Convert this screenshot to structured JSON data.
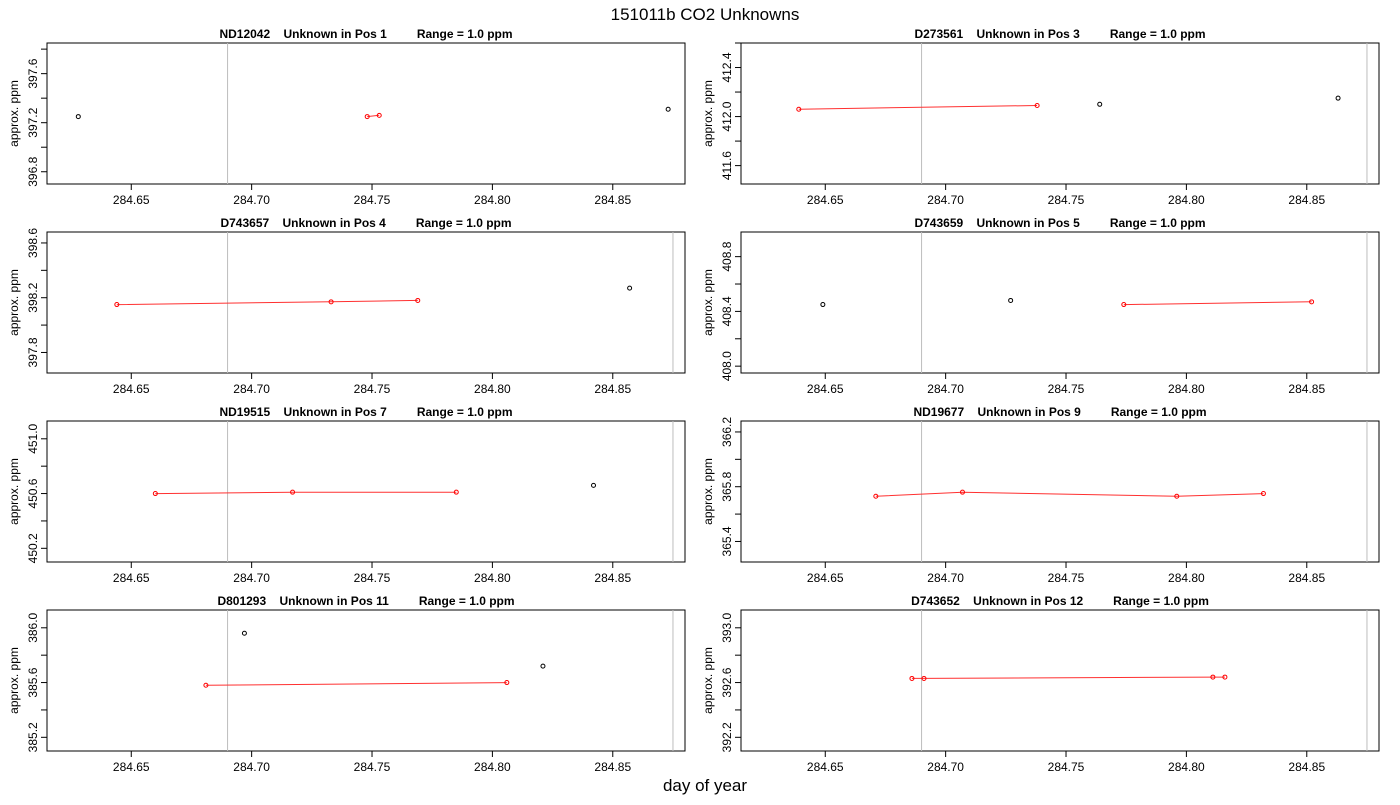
{
  "figure": {
    "title": "151011b  CO2 Unknowns",
    "xlabel": "day of year"
  },
  "chart_data": [
    {
      "type": "scatter",
      "title": "ND12042    Unknown in Pos 1         Range = 1.0 ppm",
      "xlabel": "",
      "ylabel": "approx. ppm",
      "xlim": [
        284.615,
        284.88
      ],
      "ylim": [
        396.7,
        397.85
      ],
      "xticks": [
        "284.65",
        "284.70",
        "284.75",
        "284.80",
        "284.85"
      ],
      "yticks": [
        "396.8",
        "397.2",
        "397.6"
      ],
      "vlines": [
        284.69
      ],
      "line": [
        [
          284.748,
          397.25
        ],
        [
          284.753,
          397.26
        ]
      ],
      "points": [
        [
          284.628,
          397.25,
          "#000000"
        ],
        [
          284.748,
          397.25,
          "#ff0000"
        ],
        [
          284.753,
          397.26,
          "#ff0000"
        ],
        [
          284.873,
          397.31,
          "#000000"
        ]
      ]
    },
    {
      "type": "scatter",
      "title": "D273561    Unknown in Pos 3         Range = 1.0 ppm",
      "xlabel": "",
      "ylabel": "approx. ppm",
      "xlim": [
        284.615,
        284.88
      ],
      "ylim": [
        411.45,
        412.6
      ],
      "xticks": [
        "284.65",
        "284.70",
        "284.75",
        "284.80",
        "284.85"
      ],
      "yticks": [
        "411.6",
        "412.0",
        "412.4"
      ],
      "vlines": [
        284.69,
        284.875
      ],
      "line": [
        [
          284.639,
          412.06
        ],
        [
          284.738,
          412.09
        ]
      ],
      "points": [
        [
          284.639,
          412.06,
          "#ff0000"
        ],
        [
          284.738,
          412.09,
          "#ff0000"
        ],
        [
          284.764,
          412.1,
          "#000000"
        ],
        [
          284.863,
          412.15,
          "#000000"
        ]
      ]
    },
    {
      "type": "scatter",
      "title": "D743657    Unknown in Pos 4         Range = 1.0 ppm",
      "xlabel": "",
      "ylabel": "approx. ppm",
      "xlim": [
        284.615,
        284.88
      ],
      "ylim": [
        397.65,
        398.68
      ],
      "xticks": [
        "284.65",
        "284.70",
        "284.75",
        "284.80",
        "284.85"
      ],
      "yticks": [
        "397.8",
        "398.2",
        "398.6"
      ],
      "vlines": [
        284.69,
        284.875
      ],
      "line": [
        [
          284.644,
          398.15
        ],
        [
          284.733,
          398.17
        ],
        [
          284.769,
          398.18
        ]
      ],
      "points": [
        [
          284.644,
          398.15,
          "#ff0000"
        ],
        [
          284.733,
          398.17,
          "#ff0000"
        ],
        [
          284.769,
          398.18,
          "#ff0000"
        ],
        [
          284.857,
          398.27,
          "#000000"
        ]
      ]
    },
    {
      "type": "scatter",
      "title": "D743659    Unknown in Pos 5         Range = 1.0 ppm",
      "xlabel": "",
      "ylabel": "approx. ppm",
      "xlim": [
        284.615,
        284.88
      ],
      "ylim": [
        407.95,
        408.98
      ],
      "xticks": [
        "284.65",
        "284.70",
        "284.75",
        "284.80",
        "284.85"
      ],
      "yticks": [
        "408.0",
        "408.4",
        "408.8"
      ],
      "vlines": [
        284.69,
        284.875
      ],
      "line": [
        [
          284.774,
          408.45
        ],
        [
          284.852,
          408.47
        ]
      ],
      "points": [
        [
          284.649,
          408.45,
          "#000000"
        ],
        [
          284.727,
          408.48,
          "#000000"
        ],
        [
          284.774,
          408.45,
          "#ff0000"
        ],
        [
          284.852,
          408.47,
          "#ff0000"
        ]
      ]
    },
    {
      "type": "scatter",
      "title": "ND19515    Unknown in Pos 7         Range = 1.0 ppm",
      "xlabel": "",
      "ylabel": "approx. ppm",
      "xlim": [
        284.615,
        284.88
      ],
      "ylim": [
        450.1,
        451.13
      ],
      "xticks": [
        "284.65",
        "284.70",
        "284.75",
        "284.80",
        "284.85"
      ],
      "yticks": [
        "450.2",
        "450.6",
        "451.0"
      ],
      "vlines": [
        284.69,
        284.875
      ],
      "line": [
        [
          284.66,
          450.6
        ],
        [
          284.717,
          450.61
        ],
        [
          284.785,
          450.61
        ]
      ],
      "points": [
        [
          284.66,
          450.6,
          "#ff0000"
        ],
        [
          284.717,
          450.61,
          "#ff0000"
        ],
        [
          284.785,
          450.61,
          "#ff0000"
        ],
        [
          284.842,
          450.66,
          "#000000"
        ]
      ]
    },
    {
      "type": "scatter",
      "title": "ND19677    Unknown in Pos 9         Range = 1.0 ppm",
      "xlabel": "",
      "ylabel": "approx. ppm",
      "xlim": [
        284.615,
        284.88
      ],
      "ylim": [
        365.25,
        366.28
      ],
      "xticks": [
        "284.65",
        "284.70",
        "284.75",
        "284.80",
        "284.85"
      ],
      "yticks": [
        "365.4",
        "365.8",
        "366.2"
      ],
      "vlines": [
        284.69,
        284.875
      ],
      "line": [
        [
          284.671,
          365.73
        ],
        [
          284.707,
          365.76
        ],
        [
          284.796,
          365.73
        ],
        [
          284.832,
          365.75
        ]
      ],
      "points": [
        [
          284.671,
          365.73,
          "#ff0000"
        ],
        [
          284.707,
          365.76,
          "#ff0000"
        ],
        [
          284.796,
          365.73,
          "#ff0000"
        ],
        [
          284.832,
          365.75,
          "#ff0000"
        ]
      ]
    },
    {
      "type": "scatter",
      "title": "D801293    Unknown in Pos 11         Range = 1.0 ppm",
      "xlabel": "",
      "ylabel": "approx. ppm",
      "xlim": [
        284.615,
        284.88
      ],
      "ylim": [
        385.1,
        386.13
      ],
      "xticks": [
        "284.65",
        "284.70",
        "284.75",
        "284.80",
        "284.85"
      ],
      "yticks": [
        "385.2",
        "385.6",
        "386.0"
      ],
      "vlines": [
        284.69,
        284.875
      ],
      "line": [
        [
          284.681,
          385.58
        ],
        [
          284.806,
          385.6
        ]
      ],
      "points": [
        [
          284.681,
          385.58,
          "#ff0000"
        ],
        [
          284.697,
          385.96,
          "#000000"
        ],
        [
          284.806,
          385.6,
          "#ff0000"
        ],
        [
          284.821,
          385.72,
          "#000000"
        ]
      ]
    },
    {
      "type": "scatter",
      "title": "D743652    Unknown in Pos 12         Range = 1.0 ppm",
      "xlabel": "",
      "ylabel": "approx. ppm",
      "xlim": [
        284.615,
        284.88
      ],
      "ylim": [
        392.1,
        393.13
      ],
      "xticks": [
        "284.65",
        "284.70",
        "284.75",
        "284.80",
        "284.85"
      ],
      "yticks": [
        "392.2",
        "392.6",
        "393.0"
      ],
      "vlines": [
        284.69,
        284.875
      ],
      "line": [
        [
          284.686,
          392.63
        ],
        [
          284.691,
          392.63
        ],
        [
          284.811,
          392.64
        ],
        [
          284.816,
          392.64
        ]
      ],
      "points": [
        [
          284.686,
          392.63,
          "#ff0000"
        ],
        [
          284.691,
          392.63,
          "#ff0000"
        ],
        [
          284.811,
          392.64,
          "#ff0000"
        ],
        [
          284.816,
          392.64,
          "#ff0000"
        ]
      ]
    }
  ]
}
